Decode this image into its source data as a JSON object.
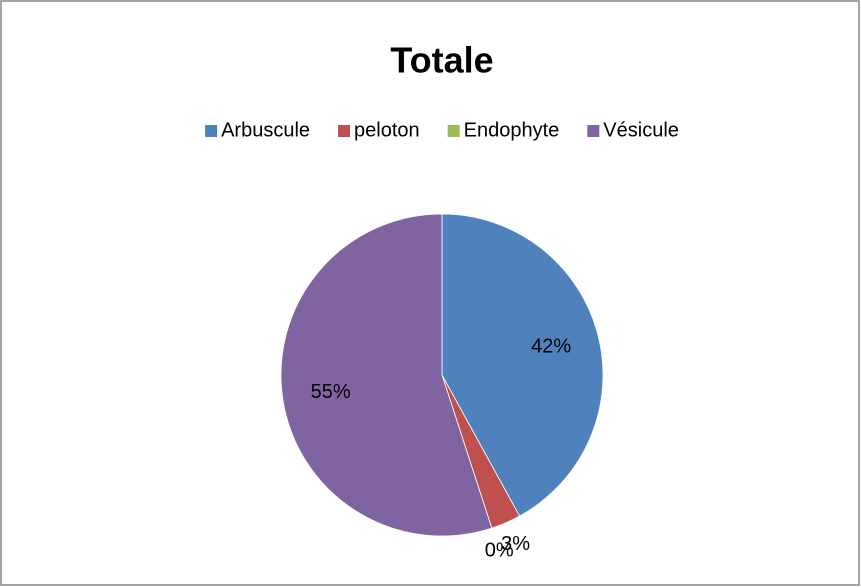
{
  "chart_data": {
    "type": "pie",
    "title": "Totale",
    "categories": [
      "Arbuscule",
      "peloton",
      "Endophyte",
      "Vésicule"
    ],
    "values": [
      42,
      3,
      0,
      55
    ],
    "value_labels": [
      "42%",
      "3%",
      "0%",
      "55%"
    ],
    "colors": [
      "#4f81bd",
      "#c0504d",
      "#9bbb59",
      "#8064a2"
    ],
    "legend": "top"
  }
}
